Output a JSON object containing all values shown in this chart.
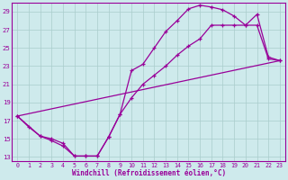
{
  "xlabel": "Windchill (Refroidissement éolien,°C)",
  "bg_color": "#ceeaec",
  "line_color": "#990099",
  "grid_color": "#aacccc",
  "xlim": [
    -0.5,
    23.5
  ],
  "ylim": [
    12.5,
    30.0
  ],
  "xticks": [
    0,
    1,
    2,
    3,
    4,
    5,
    6,
    7,
    8,
    9,
    10,
    11,
    12,
    13,
    14,
    15,
    16,
    17,
    18,
    19,
    20,
    21,
    22,
    23
  ],
  "yticks": [
    13,
    15,
    17,
    19,
    21,
    23,
    25,
    27,
    29
  ],
  "line1_x": [
    0,
    1,
    2,
    3,
    4,
    5,
    6,
    7,
    8,
    9,
    10,
    11,
    12,
    13,
    14,
    15,
    16,
    17,
    18,
    19,
    20,
    21,
    22,
    23
  ],
  "line1_y": [
    17.5,
    16.3,
    15.3,
    14.8,
    14.2,
    13.1,
    13.1,
    13.1,
    15.2,
    17.7,
    22.5,
    23.2,
    25.0,
    26.8,
    28.0,
    29.3,
    29.7,
    29.5,
    29.2,
    28.5,
    27.5,
    28.7,
    24.0,
    23.6
  ],
  "line2_x": [
    0,
    2,
    3,
    4,
    5,
    6,
    7,
    8,
    9,
    10,
    11,
    12,
    13,
    14,
    15,
    16,
    17,
    18,
    19,
    20,
    21,
    22,
    23
  ],
  "line2_y": [
    17.5,
    15.3,
    15.0,
    14.5,
    13.1,
    13.1,
    13.1,
    15.2,
    17.7,
    19.5,
    21.0,
    22.0,
    23.0,
    24.2,
    25.2,
    26.0,
    27.5,
    27.5,
    27.5,
    27.5,
    27.5,
    23.8,
    23.6
  ],
  "line3_x": [
    0,
    23
  ],
  "line3_y": [
    17.5,
    23.6
  ]
}
